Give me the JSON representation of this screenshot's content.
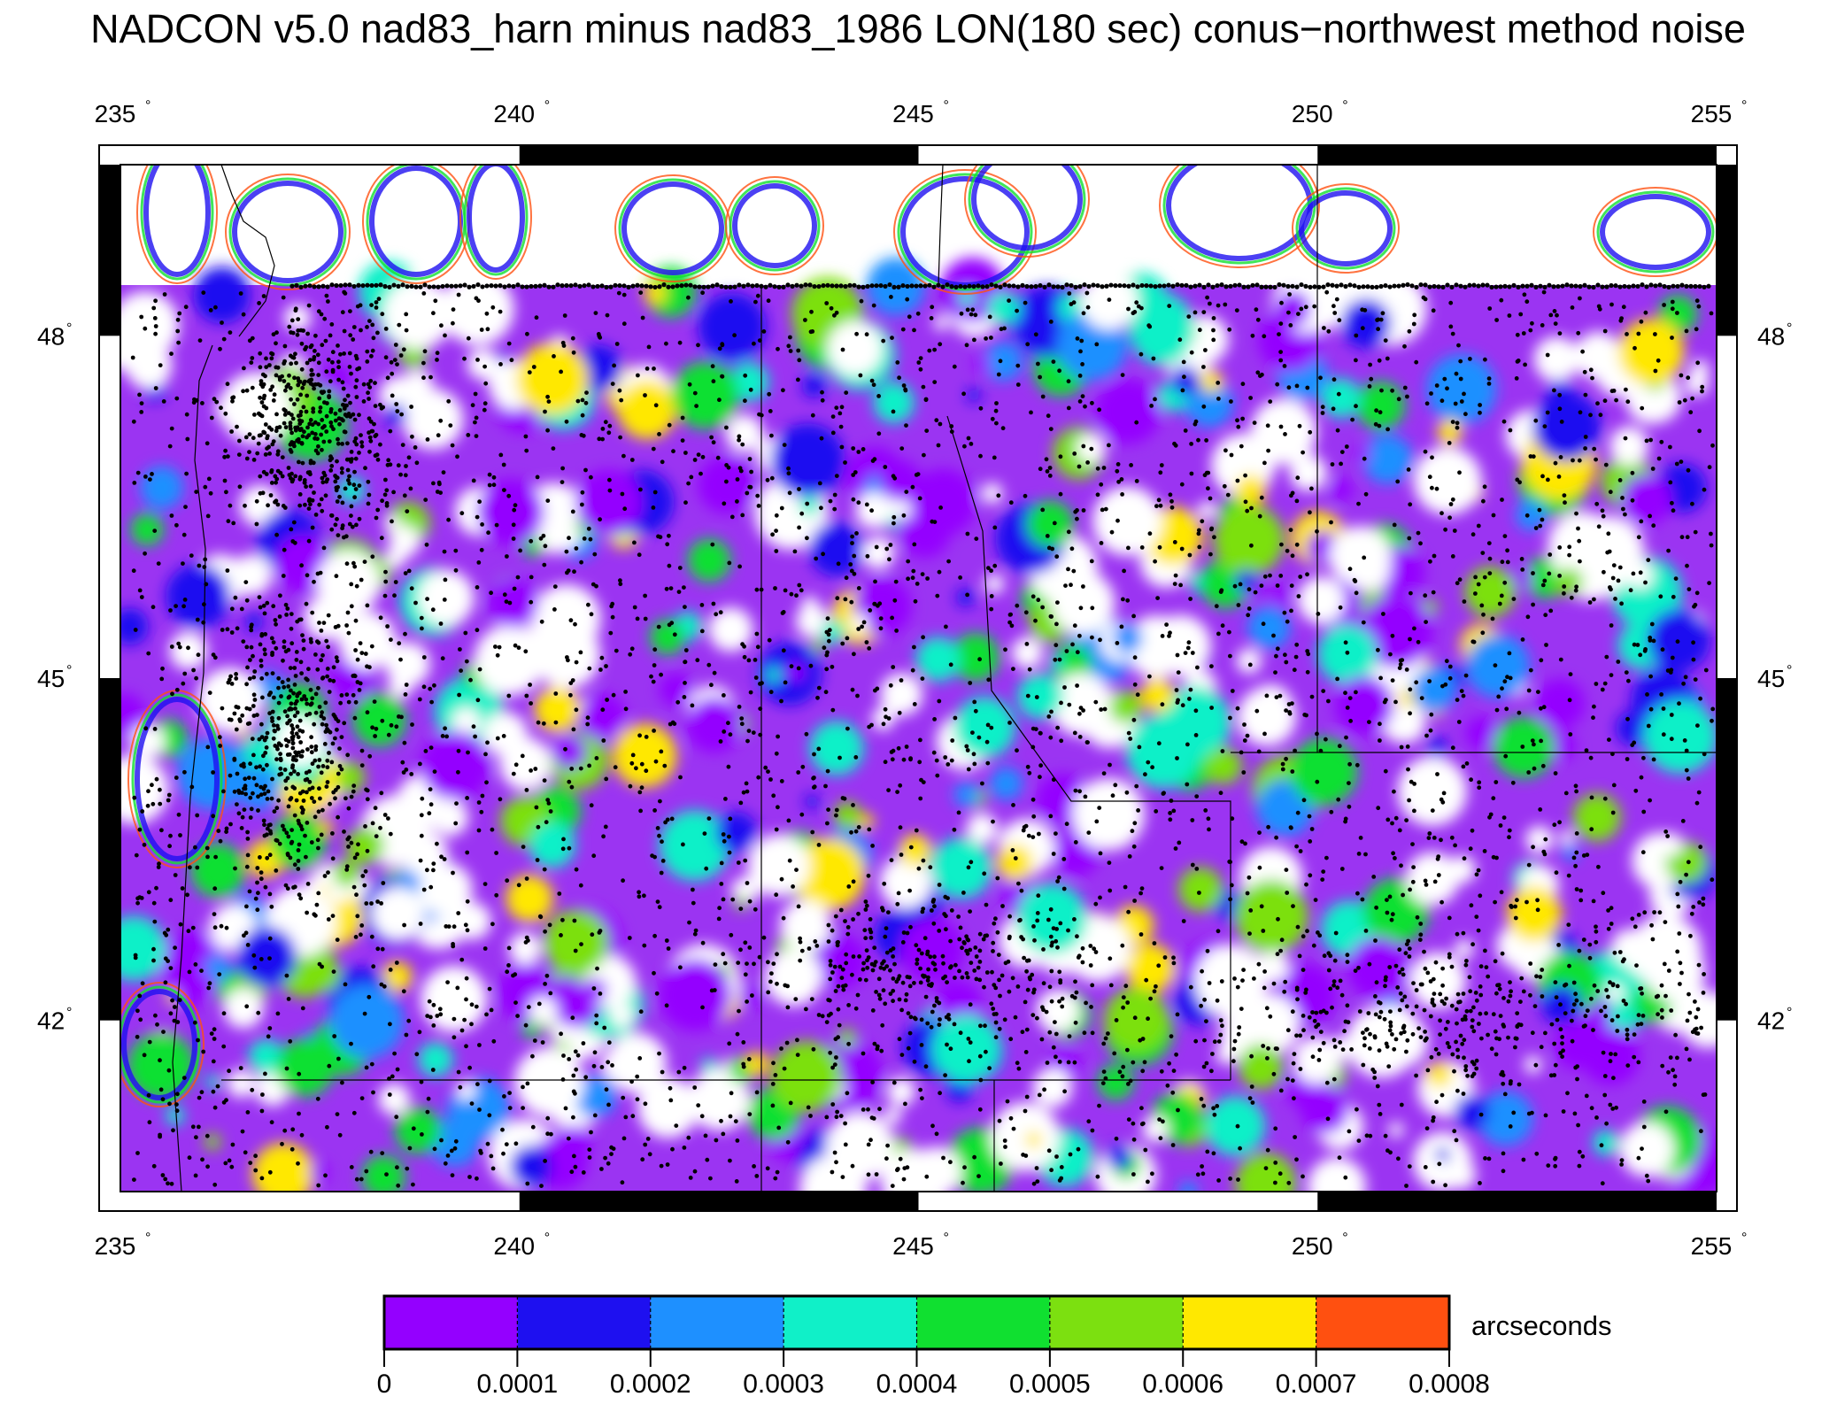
{
  "title": "NADCON v5.0 nad83_harn minus nad83_1986 LON(180 sec) conus−northwest method noise",
  "map": {
    "lon_range": [
      235,
      255
    ],
    "lat_range": [
      40.5,
      49.5
    ],
    "lon_ticks": [
      {
        "value": 235,
        "label": "235"
      },
      {
        "value": 240,
        "label": "240"
      },
      {
        "value": 245,
        "label": "245"
      },
      {
        "value": 250,
        "label": "250"
      },
      {
        "value": 255,
        "label": "255"
      }
    ],
    "lat_ticks": [
      {
        "value": 48,
        "label": "48"
      },
      {
        "value": 45,
        "label": "45"
      },
      {
        "value": 42,
        "label": "42"
      }
    ],
    "degree_symbol": "°"
  },
  "colorbar": {
    "unit": "arcseconds",
    "labels": [
      "0",
      "0.0001",
      "0.0002",
      "0.0003",
      "0.0004",
      "0.0005",
      "0.0006",
      "0.0007",
      "0.0008"
    ],
    "colors": [
      "#9400ff",
      "#1e10f0",
      "#1e90ff",
      "#10f0c8",
      "#10e030",
      "#7ce010",
      "#ffe800",
      "#ff5010"
    ]
  }
}
